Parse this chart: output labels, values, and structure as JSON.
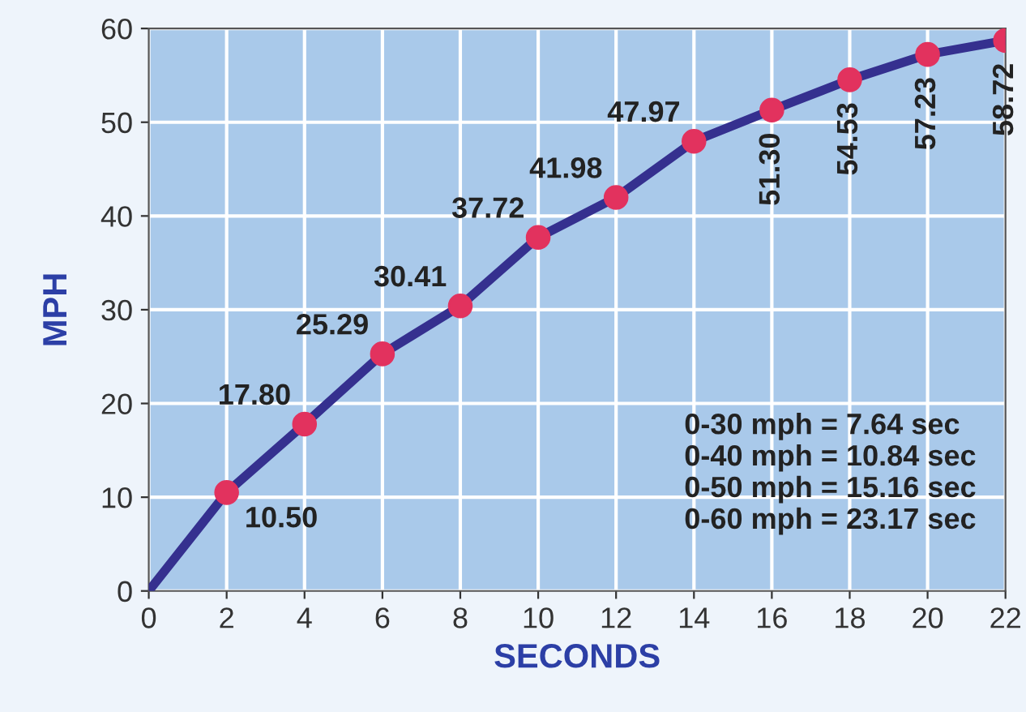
{
  "chart_data": {
    "type": "line",
    "xlabel": "SECONDS",
    "ylabel": "MPH",
    "x": [
      0,
      2,
      4,
      6,
      8,
      10,
      12,
      14,
      16,
      18,
      20,
      22
    ],
    "series": [
      {
        "color": "#35308f",
        "colors": [
          null,
          "#e2325e",
          "#e2325e",
          "#e2325e",
          "#e2325e",
          "#e2325e",
          "#e2325e",
          "#e2325e",
          "#e2325e",
          "#e2325e",
          "#e2325e",
          "#e2325e"
        ],
        "values": [
          0,
          10.5,
          17.8,
          25.29,
          30.41,
          37.72,
          41.98,
          47.97,
          51.3,
          54.53,
          57.23,
          58.72
        ],
        "value_labels": [
          null,
          "10.50",
          "17.80",
          "25.29",
          "30.41",
          "37.72",
          "41.98",
          "47.97",
          "51.30",
          "54.53",
          "57.23",
          "58.72"
        ]
      }
    ],
    "xlim": [
      0,
      22
    ],
    "ylim": [
      0,
      60
    ],
    "xticks": [
      0,
      2,
      4,
      6,
      8,
      10,
      12,
      14,
      16,
      18,
      20,
      22
    ],
    "yticks": [
      0,
      10,
      20,
      30,
      40,
      50,
      60
    ],
    "grid": true,
    "marker": "circle",
    "line_style": "solid",
    "annotations": [
      "0-30 mph = 7.64 sec\n0-40 mph = 10.84 sec\n0-50 mph = 15.16 sec\n0-60 mph = 23.17 sec"
    ]
  }
}
